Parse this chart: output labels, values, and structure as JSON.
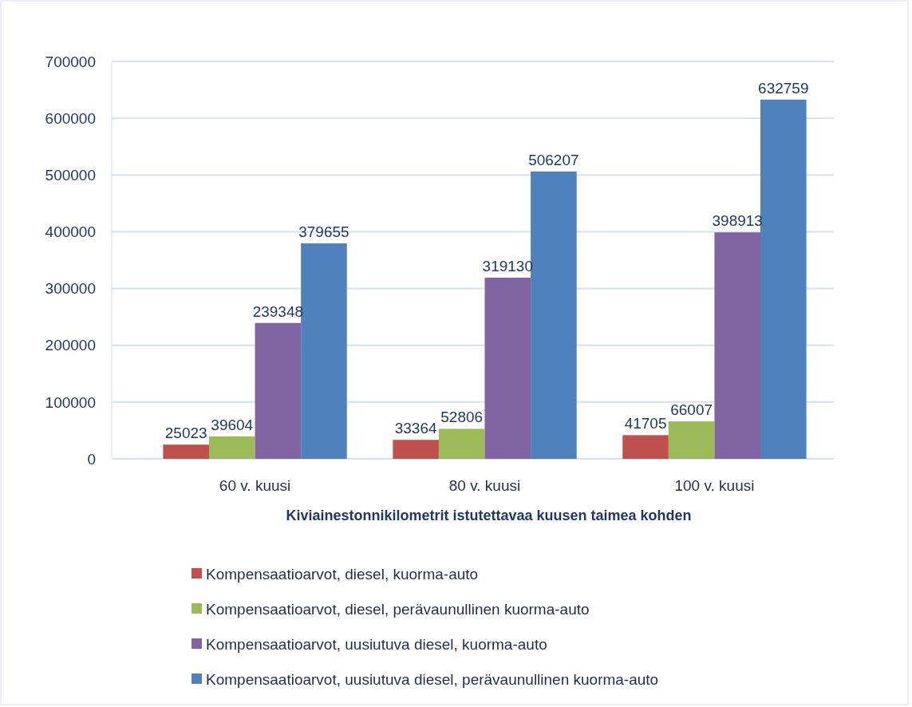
{
  "chart_data": {
    "type": "bar",
    "xlabel": "Kiviainestonnikilometrit istutettavaa kuusen taimea kohden",
    "categories": [
      "60 v. kuusi",
      "80 v. kuusi",
      "100 v. kuusi"
    ],
    "series": [
      {
        "name": "Kompensaatioarvot, diesel, kuorma-auto",
        "color": "#c0504d",
        "values": [
          25023,
          33364,
          41705
        ]
      },
      {
        "name": "Kompensaatioarvot, diesel, perävaunullinen kuorma-auto",
        "color": "#9bbb59",
        "values": [
          39604,
          52806,
          66007
        ]
      },
      {
        "name": "Kompensaatioarvot, uusiutuva diesel, kuorma-auto",
        "color": "#8064a2",
        "values": [
          239348,
          319130,
          398913
        ]
      },
      {
        "name": "Kompensaatioarvot, uusiutuva diesel, perävaunullinen kuorma-auto",
        "color": "#4f81bd",
        "values": [
          379655,
          506207,
          632759
        ]
      }
    ],
    "ylim": [
      0,
      700000
    ],
    "yticks": [
      0,
      100000,
      200000,
      300000,
      400000,
      500000,
      600000,
      700000
    ],
    "grid": "y",
    "legend": "bottom",
    "data_labels": true
  }
}
